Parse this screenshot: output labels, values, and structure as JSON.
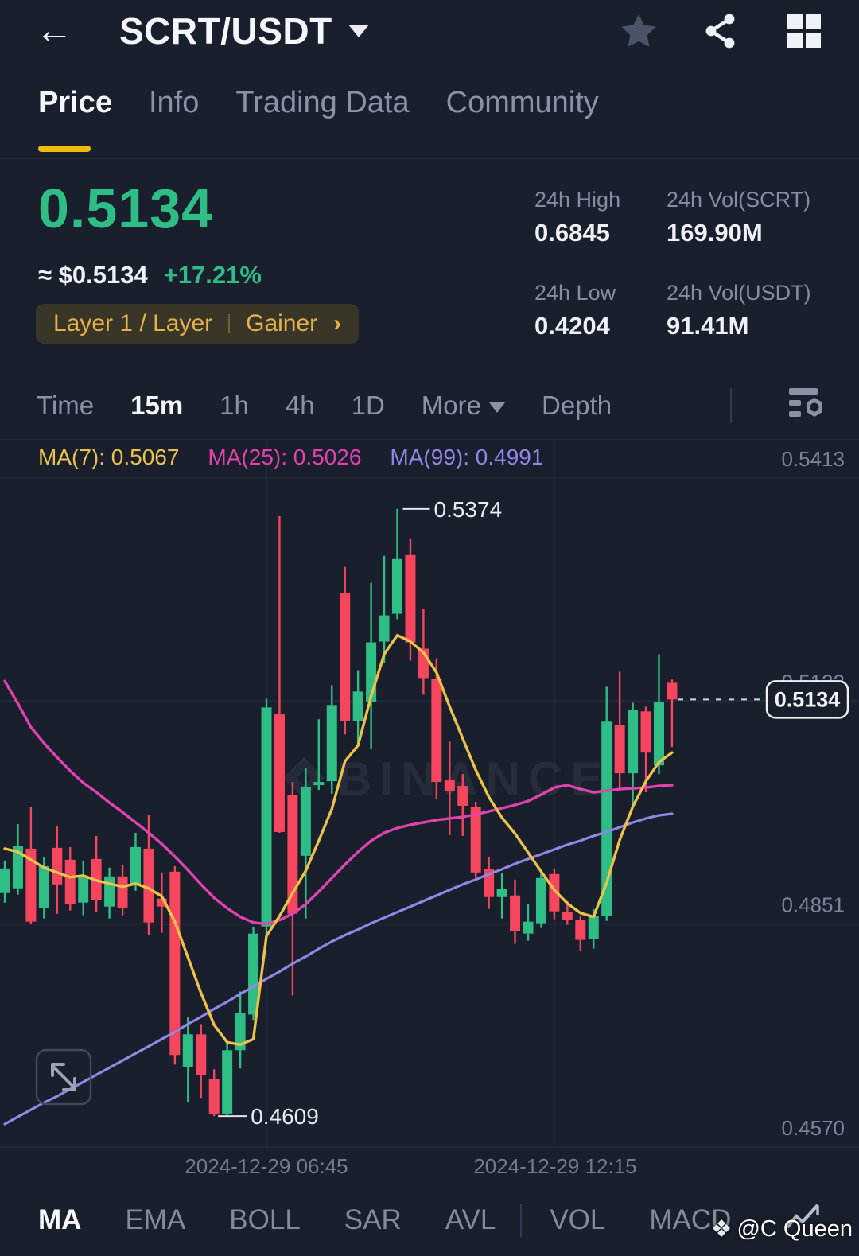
{
  "colors": {
    "accent": "#f0b90b",
    "up": "#2ebd85",
    "down": "#f6465d",
    "background": "#191f2d"
  },
  "header": {
    "back_icon": "←",
    "title": "SCRT/USDT"
  },
  "tabs": [
    {
      "label": "Price",
      "active": true
    },
    {
      "label": "Info",
      "active": false
    },
    {
      "label": "Trading Data",
      "active": false
    },
    {
      "label": "Community",
      "active": false
    }
  ],
  "price_panel": {
    "last_price": "0.5134",
    "approx": "≈ $0.5134",
    "change": "+17.21%",
    "tag_category": "Layer 1 / Layer",
    "tag_badge": "Gainer",
    "tag_chevron": "›"
  },
  "stats": [
    {
      "label": "24h High",
      "value": "0.6845"
    },
    {
      "label": "24h Vol(SCRT)",
      "value": "169.90M"
    },
    {
      "label": "24h Low",
      "value": "0.4204"
    },
    {
      "label": "24h Vol(USDT)",
      "value": "91.41M"
    }
  ],
  "interval_bar": {
    "items": [
      {
        "label": "Time",
        "active": false
      },
      {
        "label": "15m",
        "active": true
      },
      {
        "label": "1h",
        "active": false
      },
      {
        "label": "4h",
        "active": false
      },
      {
        "label": "1D",
        "active": false
      },
      {
        "label": "More",
        "active": false
      },
      {
        "label": "Depth",
        "active": false
      }
    ]
  },
  "indicator_bar": {
    "items": [
      {
        "label": "MA",
        "active": true
      },
      {
        "label": "EMA",
        "active": false
      },
      {
        "label": "BOLL",
        "active": false
      },
      {
        "label": "SAR",
        "active": false
      },
      {
        "label": "AVL",
        "active": false
      },
      {
        "label": "VOL",
        "active": false
      },
      {
        "label": "MACD",
        "active": false
      }
    ]
  },
  "watermark": "BINANCE",
  "credit": "@C Queen",
  "chart_data": {
    "type": "candlestick",
    "pair": "SCRT/USDT",
    "interval": "15m",
    "colors": {
      "up": "#2ebd85",
      "down": "#f6465d",
      "ma7": "#edc24a",
      "ma25": "#e143ae",
      "ma99": "#9186e4",
      "grid": "#232b3d",
      "axis_text": "#7c8699",
      "annotation": "#e8ecf2"
    },
    "legend": [
      {
        "text": "MA(7): 0.5067",
        "color": "#edc24a"
      },
      {
        "text": "MA(25): 0.5026",
        "color": "#e143ae"
      },
      {
        "text": "MA(99): 0.4991",
        "color": "#9186e4"
      }
    ],
    "y_axis": {
      "labels": [
        {
          "text": "0.5413",
          "price": 0.5413,
          "behind_badge": false
        },
        {
          "text": "0.5132",
          "price": 0.5132,
          "behind_badge": true
        },
        {
          "text": "0.4851",
          "price": 0.4851,
          "behind_badge": false
        },
        {
          "text": "0.4570",
          "price": 0.457,
          "behind_badge": false
        }
      ]
    },
    "x_axis": {
      "labels": [
        {
          "text": "2024-12-29 06:45",
          "candle_index": 20
        },
        {
          "text": "2024-12-29 12:15",
          "candle_index": 42
        }
      ]
    },
    "annotations": {
      "session_high": {
        "text": "0.5374",
        "price": 0.5374,
        "candle_index": 30
      },
      "session_low": {
        "text": "0.4609",
        "price": 0.4609,
        "candle_index": 16
      },
      "last_price": {
        "text": "0.5134",
        "price": 0.5134
      }
    },
    "candles": [
      [
        "01:45",
        0.489,
        0.4931,
        0.4878,
        0.4921
      ],
      [
        "02:00",
        0.4896,
        0.4977,
        0.4888,
        0.4949
      ],
      [
        "02:15",
        0.4946,
        0.4999,
        0.4851,
        0.4854
      ],
      [
        "02:30",
        0.4871,
        0.4935,
        0.4858,
        0.4924
      ],
      [
        "02:45",
        0.4947,
        0.4975,
        0.4864,
        0.4901
      ],
      [
        "03:00",
        0.4932,
        0.4948,
        0.4868,
        0.4876
      ],
      [
        "03:15",
        0.4878,
        0.493,
        0.4862,
        0.4912
      ],
      [
        "03:30",
        0.4933,
        0.4962,
        0.4866,
        0.4881
      ],
      [
        "03:45",
        0.4873,
        0.4922,
        0.4858,
        0.4911
      ],
      [
        "04:00",
        0.4911,
        0.4926,
        0.4862,
        0.4871
      ],
      [
        "04:15",
        0.4901,
        0.4966,
        0.4893,
        0.4948
      ],
      [
        "04:30",
        0.4946,
        0.4989,
        0.4837,
        0.4853
      ],
      [
        "04:45",
        0.4883,
        0.4916,
        0.484,
        0.4873
      ],
      [
        "05:00",
        0.4917,
        0.4924,
        0.4674,
        0.4686
      ],
      [
        "05:15",
        0.4671,
        0.4734,
        0.4626,
        0.4712
      ],
      [
        "05:30",
        0.4712,
        0.4725,
        0.4632,
        0.4661
      ],
      [
        "05:45",
        0.4656,
        0.4668,
        0.4609,
        0.4611
      ],
      [
        "06:00",
        0.4612,
        0.4704,
        0.461,
        0.4692
      ],
      [
        "06:15",
        0.4692,
        0.4766,
        0.4669,
        0.4739
      ],
      [
        "06:30",
        0.4737,
        0.4847,
        0.473,
        0.4839
      ],
      [
        "06:45",
        0.4848,
        0.5135,
        0.4836,
        0.5124
      ],
      [
        "07:00",
        0.5116,
        0.5365,
        0.4966,
        0.4967
      ],
      [
        "07:15",
        0.5014,
        0.503,
        0.4761,
        0.4864
      ],
      [
        "07:30",
        0.4937,
        0.5047,
        0.4858,
        0.5024
      ],
      [
        "07:45",
        0.5026,
        0.5109,
        0.502,
        0.503
      ],
      [
        "08:00",
        0.5031,
        0.5152,
        0.5015,
        0.5127
      ],
      [
        "08:15",
        0.5268,
        0.5301,
        0.509,
        0.5107
      ],
      [
        "08:30",
        0.5107,
        0.5171,
        0.5077,
        0.5144
      ],
      [
        "08:45",
        0.5131,
        0.5281,
        0.5071,
        0.5206
      ],
      [
        "09:00",
        0.5207,
        0.5315,
        0.518,
        0.524
      ],
      [
        "09:15",
        0.5242,
        0.5374,
        0.5235,
        0.5311
      ],
      [
        "09:30",
        0.5316,
        0.5337,
        0.5183,
        0.5206
      ],
      [
        "09:45",
        0.5198,
        0.5248,
        0.514,
        0.5161
      ],
      [
        "10:00",
        0.516,
        0.5186,
        0.5008,
        0.503
      ],
      [
        "10:15",
        0.5032,
        0.5081,
        0.4963,
        0.5019
      ],
      [
        "10:30",
        0.5025,
        0.504,
        0.4962,
        0.5
      ],
      [
        "10:45",
        0.4999,
        0.5005,
        0.4909,
        0.4916
      ],
      [
        "11:00",
        0.492,
        0.4935,
        0.487,
        0.4885
      ],
      [
        "11:15",
        0.4885,
        0.4915,
        0.4858,
        0.4895
      ],
      [
        "11:30",
        0.4887,
        0.4907,
        0.4826,
        0.4842
      ],
      [
        "11:45",
        0.4839,
        0.4876,
        0.483,
        0.4854
      ],
      [
        "12:00",
        0.4852,
        0.4919,
        0.4846,
        0.4909
      ],
      [
        "12:15",
        0.4914,
        0.4921,
        0.4857,
        0.4867
      ],
      [
        "12:30",
        0.4866,
        0.488,
        0.485,
        0.4856
      ],
      [
        "12:45",
        0.4856,
        0.4862,
        0.4817,
        0.4831
      ],
      [
        "13:00",
        0.4832,
        0.487,
        0.482,
        0.4861
      ],
      [
        "13:15",
        0.4861,
        0.515,
        0.4855,
        0.5106
      ],
      [
        "13:30",
        0.5102,
        0.5169,
        0.5019,
        0.5041
      ],
      [
        "13:45",
        0.5041,
        0.513,
        0.5001,
        0.5121
      ],
      [
        "14:00",
        0.5119,
        0.5125,
        0.5017,
        0.5067
      ],
      [
        "14:15",
        0.5051,
        0.5191,
        0.504,
        0.5131
      ],
      [
        "14:30",
        0.5155,
        0.5159,
        0.5074,
        0.5134
      ]
    ],
    "ma7": [
      0.4946,
      0.4942,
      0.4932,
      0.4922,
      0.4916,
      0.491,
      0.4912,
      0.4906,
      0.4902,
      0.4898,
      0.4902,
      0.4896,
      0.4886,
      0.4854,
      0.4809,
      0.4764,
      0.4724,
      0.4702,
      0.4699,
      0.4706,
      0.4836,
      0.4861,
      0.489,
      0.4918,
      0.4956,
      0.4996,
      0.5056,
      0.5076,
      0.5138,
      0.5191,
      0.5215,
      0.5207,
      0.5193,
      0.5168,
      0.5125,
      0.5085,
      0.5045,
      0.5011,
      0.4985,
      0.4965,
      0.4941,
      0.4917,
      0.4894,
      0.4877,
      0.4865,
      0.486,
      0.4903,
      0.4957,
      0.4999,
      0.5031,
      0.5055,
      0.5067
    ],
    "ma25": [
      0.5157,
      0.5129,
      0.5099,
      0.5079,
      0.5061,
      0.5044,
      0.5029,
      0.5017,
      0.5004,
      0.4992,
      0.4979,
      0.4966,
      0.4952,
      0.4936,
      0.4919,
      0.4901,
      0.4884,
      0.4871,
      0.486,
      0.4853,
      0.4851,
      0.4856,
      0.4864,
      0.4876,
      0.4892,
      0.4909,
      0.4926,
      0.4942,
      0.4956,
      0.4966,
      0.4972,
      0.4976,
      0.4979,
      0.4982,
      0.4984,
      0.4986,
      0.4989,
      0.4993,
      0.4997,
      0.5001,
      0.5006,
      0.5014,
      0.5023,
      0.5026,
      0.5021,
      0.5017,
      0.5019,
      0.5021,
      0.5022,
      0.5023,
      0.5025,
      0.5026
    ],
    "ma99": [
      0.4599,
      0.4608,
      0.4617,
      0.4626,
      0.4634,
      0.4643,
      0.4652,
      0.4661,
      0.467,
      0.4679,
      0.4688,
      0.4697,
      0.4706,
      0.4715,
      0.4725,
      0.4734,
      0.4744,
      0.4753,
      0.4763,
      0.4772,
      0.4782,
      0.4791,
      0.4801,
      0.481,
      0.482,
      0.4829,
      0.4837,
      0.4844,
      0.4852,
      0.4859,
      0.4866,
      0.4873,
      0.488,
      0.4887,
      0.4894,
      0.4901,
      0.4907,
      0.4914,
      0.492,
      0.4927,
      0.4933,
      0.4939,
      0.4945,
      0.4951,
      0.4956,
      0.4962,
      0.4967,
      0.4973,
      0.4979,
      0.4984,
      0.4988,
      0.499
    ]
  }
}
